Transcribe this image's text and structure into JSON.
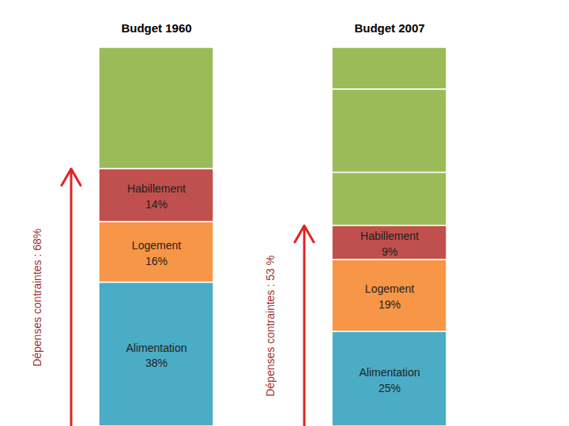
{
  "chart_data": {
    "type": "bar",
    "stacked": true,
    "data_labels": true,
    "tick_labels": false,
    "categories": [
      "Budget 1960",
      "Budget 2007"
    ],
    "ylim": [
      0,
      100
    ],
    "series": [
      {
        "name": "Alimentation",
        "color": "#4bacc6",
        "values": [
          38,
          25
        ],
        "value_labels": [
          "38%",
          "25%"
        ]
      },
      {
        "name": "Logement",
        "color": "#f79646",
        "values": [
          16,
          19
        ],
        "value_labels": [
          "16%",
          "19%"
        ]
      },
      {
        "name": "Habillement",
        "color": "#c0504d",
        "values": [
          14,
          9
        ],
        "value_labels": [
          "14%",
          "9%"
        ]
      },
      {
        "name": null,
        "color": "#9bbb59",
        "values": [
          32,
          14
        ]
      },
      {
        "name": null,
        "color": "#9bbb59",
        "values": [
          null,
          22
        ]
      },
      {
        "name": null,
        "color": "#9bbb59",
        "values": [
          null,
          11
        ]
      }
    ],
    "annotations": [
      "Dépenses contraintes : 68%",
      "Dépenses contraintes : 53 %"
    ]
  }
}
